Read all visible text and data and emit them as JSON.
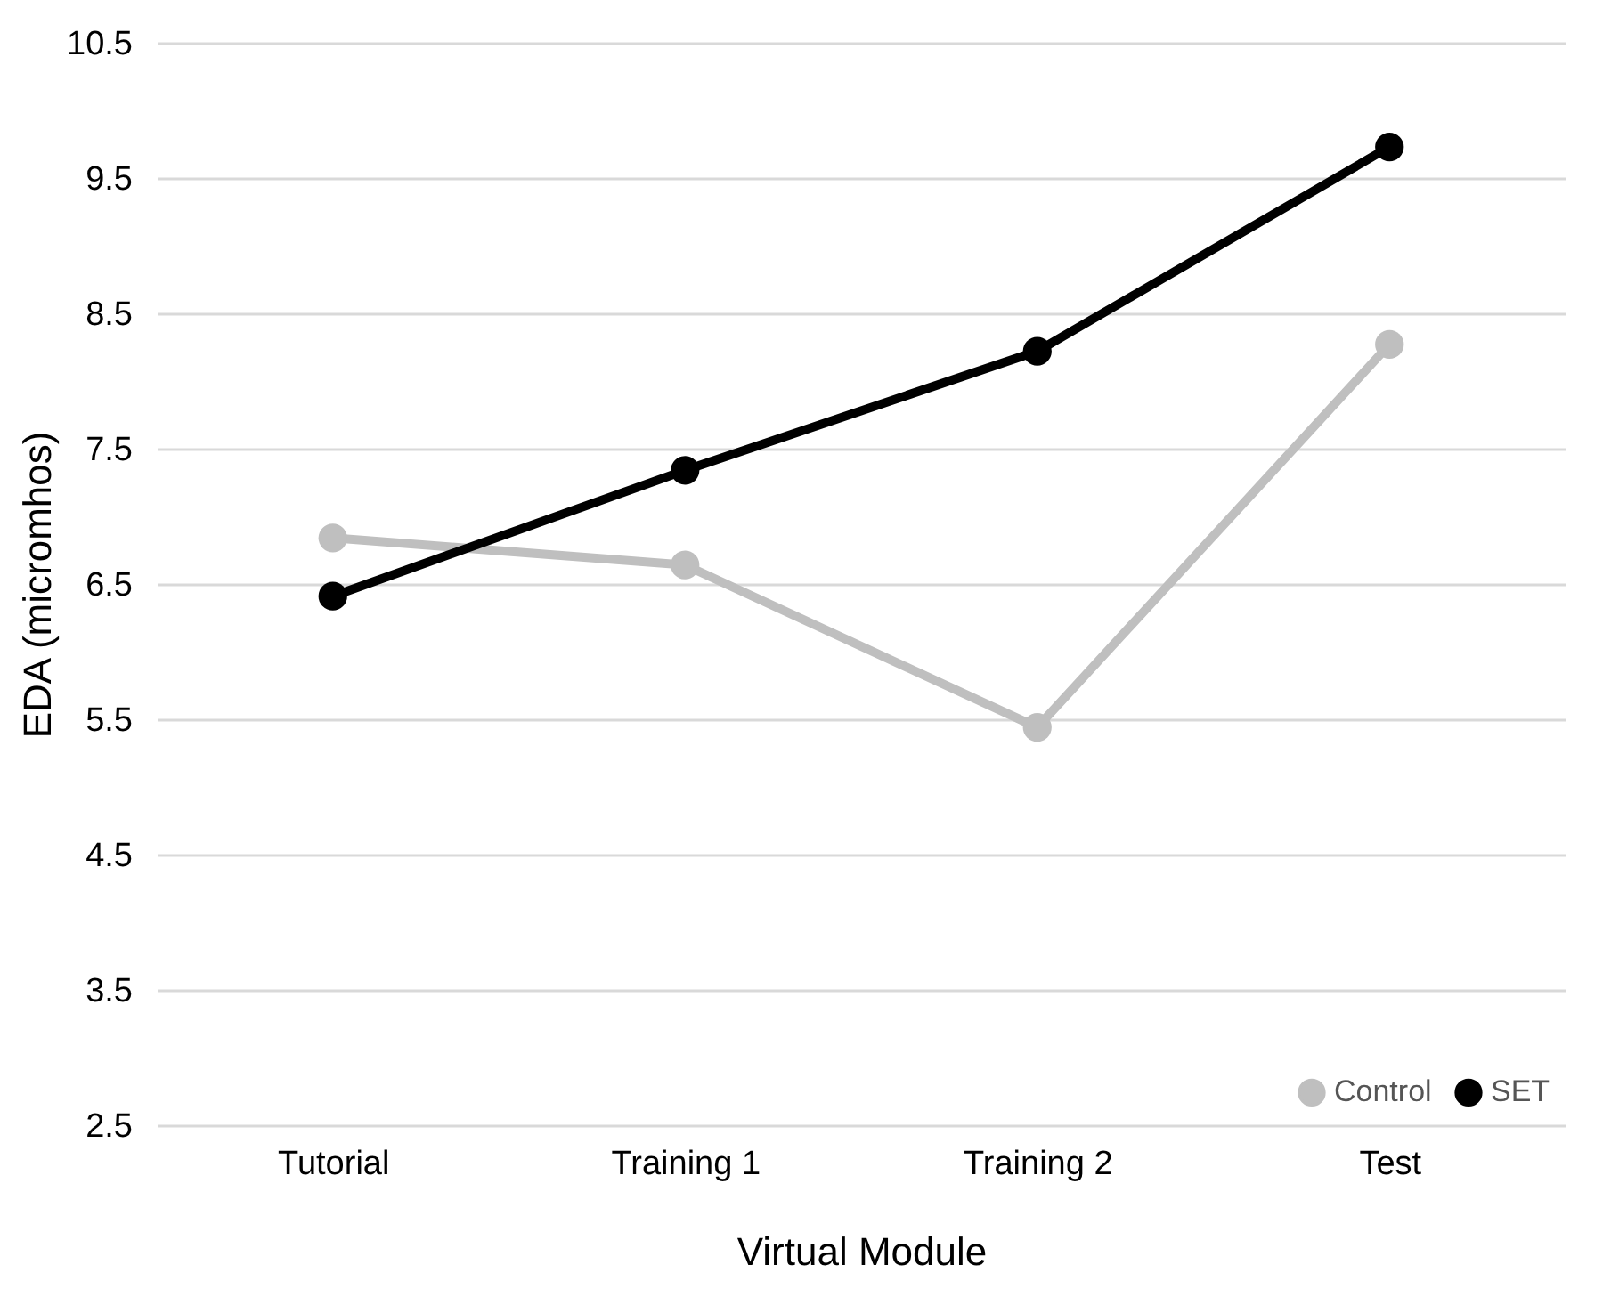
{
  "chart_data": {
    "type": "line",
    "xlabel": "Virtual Module",
    "ylabel": "EDA (micromhos)",
    "categories": [
      "Tutorial",
      "Training 1",
      "Training 2",
      "Test"
    ],
    "series": [
      {
        "name": "Control",
        "color": "#bfbfbf",
        "values": [
          6.84,
          6.64,
          5.44,
          8.27
        ]
      },
      {
        "name": "SET",
        "color": "#000000",
        "values": [
          6.41,
          7.34,
          8.22,
          9.73
        ]
      }
    ],
    "ylim": [
      2.5,
      10.5
    ],
    "yticks": [
      2.5,
      3.5,
      4.5,
      5.5,
      6.5,
      7.5,
      8.5,
      9.5,
      10.5
    ],
    "grid": "y",
    "legend": "bottom right",
    "marker": "circle",
    "line_style": "solid"
  }
}
